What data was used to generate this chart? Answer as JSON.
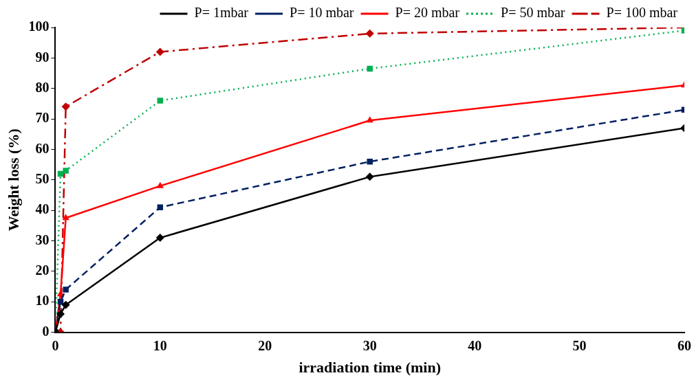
{
  "chart_data": {
    "type": "line",
    "xlabel": "irradiation time (min)",
    "ylabel": "Weight loss (%)",
    "x": [
      0,
      0.5,
      1,
      10,
      30,
      60
    ],
    "series": [
      {
        "name": "P= 1mbar",
        "color": "#000000",
        "marker": "diamond",
        "line_style": "solid",
        "values": [
          0,
          6,
          9,
          31,
          51,
          67
        ]
      },
      {
        "name": "P= 10 mbar",
        "color": "#002060",
        "marker": "square",
        "line_style": "dashed",
        "values": [
          0,
          10,
          14,
          41,
          56,
          73
        ]
      },
      {
        "name": "P= 20 mbar",
        "color": "#ff0000",
        "marker": "triangle",
        "line_style": "solid",
        "values": [
          0,
          12.5,
          37.5,
          48,
          69.5,
          81
        ]
      },
      {
        "name": "P= 50 mbar",
        "color": "#00b050",
        "marker": "square",
        "line_style": "dotted",
        "values": [
          0,
          52,
          53,
          76,
          86.5,
          99
        ]
      },
      {
        "name": "P= 100 mbar",
        "color": "#c00000",
        "marker": "diamond",
        "line_style": "dashdot",
        "values": [
          0,
          0,
          74,
          92,
          98,
          100
        ]
      }
    ],
    "xlim": [
      0,
      60
    ],
    "xticks": [
      0,
      10,
      20,
      30,
      40,
      50,
      60
    ],
    "ylim": [
      0,
      100
    ],
    "yticks": [
      0,
      10,
      20,
      30,
      40,
      50,
      60,
      70,
      80,
      90,
      100
    ],
    "grid": false,
    "legend": "top"
  }
}
